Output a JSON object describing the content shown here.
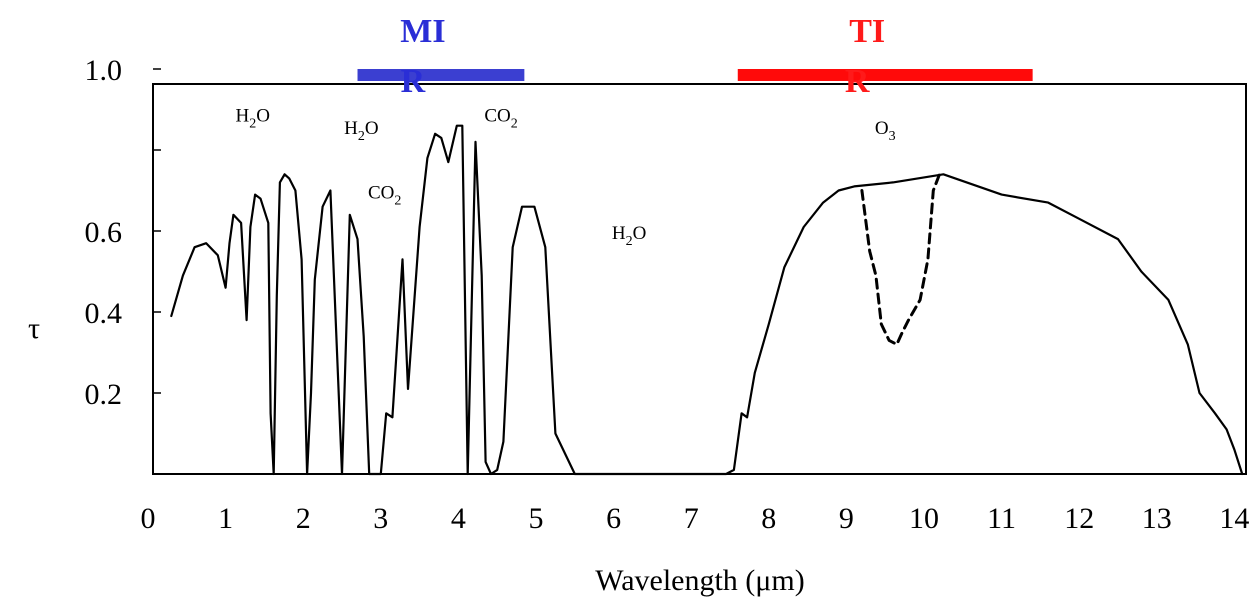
{
  "chart_data": {
    "type": "line",
    "title": "",
    "xlabel": "Wavelength (μm)",
    "ylabel": "τ",
    "xlim": [
      0,
      14
    ],
    "ylim": [
      0,
      1.0
    ],
    "x_ticks": [
      "0",
      "1",
      "2",
      "3",
      "4",
      "5",
      "6",
      "7",
      "8",
      "9",
      "10",
      "11",
      "12",
      "13",
      "14"
    ],
    "y_ticks": [
      {
        "value": 0.2,
        "label": "0.2"
      },
      {
        "value": 0.4,
        "label": "0.4"
      },
      {
        "value": 0.6,
        "label": "0.6"
      },
      {
        "value": 1.0,
        "label": "1.0"
      }
    ],
    "grid": false,
    "series": [
      {
        "style": "solid",
        "x": [
          0.3,
          0.45,
          0.6,
          0.75,
          0.9,
          1.0,
          1.05,
          1.1,
          1.2,
          1.27,
          1.32,
          1.38,
          1.45,
          1.55,
          1.58,
          1.62,
          1.66,
          1.7,
          1.76,
          1.82,
          1.9,
          1.98,
          2.05,
          2.1,
          2.15,
          2.25,
          2.35,
          2.5,
          2.6,
          2.7,
          2.78,
          2.85,
          3.0,
          3.07,
          3.15,
          3.28,
          3.35,
          3.5,
          3.6,
          3.7,
          3.78,
          3.87,
          3.98,
          4.05,
          4.12,
          4.22,
          4.3,
          4.35,
          4.42,
          4.5,
          4.58,
          4.7,
          4.82,
          4.98,
          5.12,
          5.25,
          5.5,
          6.0,
          7.0,
          7.45,
          7.55,
          7.65,
          7.72,
          7.82,
          8.0,
          8.2,
          8.45,
          8.7,
          8.9,
          9.1,
          9.6,
          10.25,
          11.0,
          11.6,
          12.0,
          12.5,
          12.8,
          13.15,
          13.4,
          13.55,
          13.75,
          13.9,
          14.0,
          14.1
        ],
        "y": [
          0.39,
          0.49,
          0.56,
          0.57,
          0.54,
          0.46,
          0.57,
          0.64,
          0.62,
          0.38,
          0.61,
          0.69,
          0.68,
          0.62,
          0.15,
          0.0,
          0.44,
          0.72,
          0.74,
          0.73,
          0.7,
          0.53,
          0.0,
          0.2,
          0.48,
          0.66,
          0.7,
          0.0,
          0.64,
          0.58,
          0.34,
          0.0,
          0.0,
          0.15,
          0.14,
          0.53,
          0.21,
          0.61,
          0.78,
          0.84,
          0.83,
          0.77,
          0.86,
          0.86,
          0.0,
          0.82,
          0.49,
          0.03,
          0.0,
          0.01,
          0.08,
          0.56,
          0.66,
          0.66,
          0.56,
          0.1,
          0.0,
          0.0,
          0.0,
          0.0,
          0.01,
          0.15,
          0.14,
          0.25,
          0.37,
          0.51,
          0.61,
          0.67,
          0.7,
          0.71,
          0.72,
          0.74,
          0.69,
          0.67,
          0.63,
          0.58,
          0.5,
          0.43,
          0.32,
          0.2,
          0.15,
          0.11,
          0.06,
          0.0
        ]
      },
      {
        "style": "dashed",
        "x": [
          9.2,
          9.3,
          9.38,
          9.45,
          9.55,
          9.65,
          9.72,
          9.8,
          9.95,
          10.05,
          10.12,
          10.2
        ],
        "y": [
          0.7,
          0.55,
          0.49,
          0.37,
          0.33,
          0.32,
          0.35,
          0.38,
          0.43,
          0.53,
          0.7,
          0.74
        ]
      }
    ],
    "annotations": [
      {
        "base": "H",
        "sub": "2",
        "tail": "O",
        "x": 1.35,
        "y": 0.87
      },
      {
        "base": "H",
        "sub": "2",
        "tail": "O",
        "x": 2.75,
        "y": 0.84
      },
      {
        "base": "CO",
        "sub": "2",
        "tail": "",
        "x": 4.55,
        "y": 0.87
      },
      {
        "base": "CO",
        "sub": "2",
        "tail": "",
        "x": 3.05,
        "y": 0.68
      },
      {
        "base": "H",
        "sub": "2",
        "tail": "O",
        "x": 6.2,
        "y": 0.58
      },
      {
        "base": "O",
        "sub": "3",
        "tail": "",
        "x": 9.5,
        "y": 0.84
      }
    ],
    "bands": [
      {
        "label": "MIR",
        "x_start": 2.7,
        "x_end": 4.85,
        "color": "#3b3fd1",
        "text_color": "#2a2ed6"
      },
      {
        "label": "TIR",
        "x_start": 7.6,
        "x_end": 11.4,
        "color": "#ff0a0a",
        "text_color": "#ff1a1a"
      }
    ]
  }
}
